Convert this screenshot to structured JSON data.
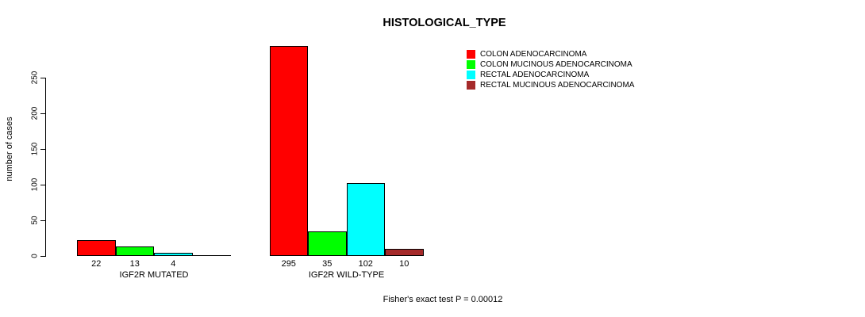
{
  "chart_data": {
    "type": "bar",
    "title": "HISTOLOGICAL_TYPE",
    "xlabel": "",
    "ylabel": "number of cases",
    "ylim": [
      0,
      295
    ],
    "yticks": [
      0,
      50,
      100,
      150,
      200,
      250
    ],
    "grid": false,
    "legend_position": "right",
    "categories": [
      "IGF2R MUTATED",
      "IGF2R WILD-TYPE"
    ],
    "series": [
      {
        "name": "COLON ADENOCARCINOMA",
        "color": "#FF0000",
        "values": [
          22,
          295
        ]
      },
      {
        "name": "COLON MUCINOUS ADENOCARCINOMA",
        "color": "#00FF00",
        "values": [
          13,
          35
        ]
      },
      {
        "name": "RECTAL ADENOCARCINOMA",
        "color": "#00FFFF",
        "values": [
          4,
          102
        ]
      },
      {
        "name": "RECTAL MUCINOUS ADENOCARCINOMA",
        "color": "#A52A2A",
        "values": [
          0,
          10
        ]
      }
    ],
    "bar_value_labels": [
      [
        "22",
        "13",
        "4",
        ""
      ],
      [
        "295",
        "35",
        "102",
        "10"
      ]
    ],
    "annotation": "Fisher's exact test P = 0.00012"
  }
}
